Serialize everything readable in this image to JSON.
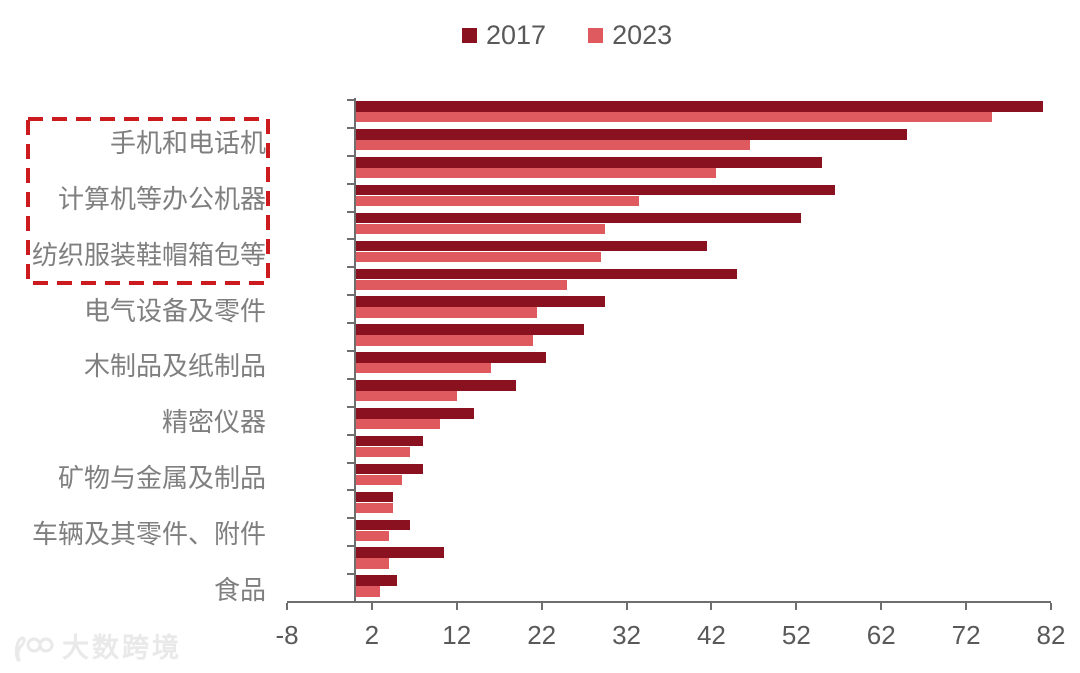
{
  "chart_data": {
    "type": "bar",
    "orientation": "horizontal",
    "title": "",
    "legend_position": "top",
    "grid": false,
    "x_axis": {
      "min": -8,
      "max": 82,
      "ticks": [
        -8,
        2,
        12,
        22,
        32,
        42,
        52,
        62,
        72,
        82
      ]
    },
    "categories": [
      "",
      "手机和电话机",
      "",
      "计算机等办公机器",
      "",
      "纺织服装鞋帽箱包等",
      "",
      "电气设备及零件",
      "",
      "木制品及纸制品",
      "",
      "精密仪器",
      "",
      "矿物与金属及制品",
      "",
      "车辆及其零件、附件",
      "",
      "食品"
    ],
    "label_note": "labels shown only on every second category row",
    "series": [
      {
        "name": "2017",
        "color": "#8a1120",
        "values": [
          81,
          65,
          55,
          56.5,
          52.5,
          41.5,
          45,
          29.5,
          27,
          22.5,
          19,
          14,
          8,
          8,
          4.5,
          6.5,
          10.5,
          5
        ]
      },
      {
        "name": "2023",
        "color": "#df5a5f",
        "values": [
          75,
          46.5,
          42.5,
          33.5,
          29.5,
          29,
          25,
          21.5,
          21,
          16,
          12,
          10,
          6.5,
          5.5,
          4.5,
          4,
          4,
          3
        ]
      }
    ]
  },
  "highlight_box": {
    "style": "dashed",
    "color": "#cb1b1e",
    "encloses": [
      "手机和电话机",
      "计算机等办公机器",
      "纺织服装鞋帽箱包等"
    ]
  },
  "watermark": {
    "logo": "100-glasses-logo",
    "text": "大数跨境"
  },
  "colors": {
    "bar_2017": "#8a1120",
    "bar_2023": "#df5a5f",
    "axis": "#6e6e6e",
    "category_text": "#7f7f7f",
    "tick_text": "#595959",
    "watermark": "#e9e9e9",
    "background": "#ffffff"
  }
}
